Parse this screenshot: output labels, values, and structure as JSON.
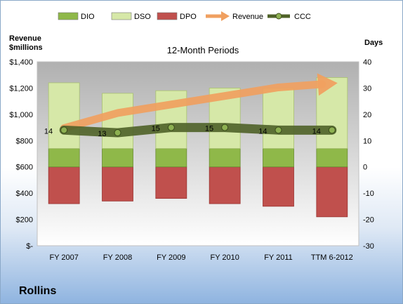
{
  "company": "Rollins",
  "chart_data": {
    "type": "bar",
    "title": "12-Month Periods",
    "y_left_label_lines": [
      "Revenue",
      "$millions"
    ],
    "y_right_label": "Days",
    "categories": [
      "FY 2007",
      "FY 2008",
      "FY 2009",
      "FY 2010",
      "FY 2011",
      "TTM 6-2012"
    ],
    "y_left": {
      "min": 0,
      "max": 1400,
      "step": 200,
      "ticks": [
        "$-",
        "$200",
        "$400",
        "$600",
        "$800",
        "$1,000",
        "$1,200",
        "$1,400"
      ]
    },
    "y_right": {
      "min": -30,
      "max": 40,
      "step": 10,
      "ticks": [
        "-30",
        "-20",
        "-10",
        "0",
        "10",
        "20",
        "30",
        "40"
      ]
    },
    "series": [
      {
        "name": "DIO",
        "kind": "stacked-bar",
        "axis": "right",
        "color": "#8fb849",
        "values": [
          7,
          7,
          7,
          7,
          7,
          7
        ]
      },
      {
        "name": "DSO",
        "kind": "stacked-bar",
        "axis": "right",
        "color": "#d6e8a8",
        "values": [
          25,
          21,
          22,
          23,
          23,
          27
        ]
      },
      {
        "name": "DPO",
        "kind": "stacked-bar",
        "axis": "right",
        "color": "#c0504d",
        "values": [
          -14,
          -13,
          -12,
          -14,
          -15,
          -19
        ]
      },
      {
        "name": "Revenue",
        "kind": "arrow-line",
        "axis": "left",
        "color": "#f0a060",
        "values": [
          895,
          1010,
          1075,
          1140,
          1205,
          1235
        ]
      },
      {
        "name": "CCC",
        "kind": "line",
        "axis": "right",
        "color": "#4f6228",
        "values": [
          14,
          13,
          15,
          15,
          14,
          14
        ],
        "labels": [
          "14",
          "13",
          "15",
          "15",
          "14",
          "14"
        ]
      }
    ],
    "legend_position": "top",
    "grid": false
  }
}
